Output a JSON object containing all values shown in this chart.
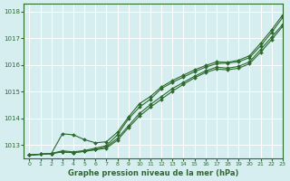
{
  "bg_color": "#d6eef0",
  "grid_color": "#ffffff",
  "line_color": "#2d6a2d",
  "marker_color": "#2d6a2d",
  "xlabel": "Graphe pression niveau de la mer (hPa)",
  "xlim": [
    -0.5,
    23
  ],
  "ylim": [
    1012.5,
    1018.3
  ],
  "yticks": [
    1013,
    1014,
    1015,
    1016,
    1017,
    1018
  ],
  "xticks": [
    0,
    1,
    2,
    3,
    4,
    5,
    6,
    7,
    8,
    9,
    10,
    11,
    12,
    13,
    14,
    15,
    16,
    17,
    18,
    19,
    20,
    21,
    22,
    23
  ],
  "series": [
    [
      1012.62,
      1012.65,
      1012.68,
      1012.78,
      1012.74,
      1012.79,
      1012.88,
      1012.98,
      1013.38,
      1013.98,
      1014.42,
      1014.72,
      1015.12,
      1015.35,
      1015.55,
      1015.75,
      1015.92,
      1016.05,
      1016.08,
      1016.12,
      1016.28,
      1016.72,
      1017.22,
      1017.78
    ],
    [
      1012.62,
      1012.65,
      1012.68,
      1012.74,
      1012.71,
      1012.76,
      1012.83,
      1012.93,
      1013.25,
      1013.72,
      1014.18,
      1014.52,
      1014.82,
      1015.12,
      1015.35,
      1015.58,
      1015.78,
      1015.92,
      1015.88,
      1015.95,
      1016.12,
      1016.58,
      1017.05,
      1017.52
    ],
    [
      1012.62,
      1012.65,
      1012.68,
      1013.42,
      1013.38,
      1013.2,
      1013.08,
      1013.12,
      1013.48,
      1014.05,
      1014.55,
      1014.82,
      1015.18,
      1015.42,
      1015.62,
      1015.82,
      1015.98,
      1016.12,
      1016.1,
      1016.18,
      1016.35,
      1016.82,
      1017.32,
      1017.88
    ],
    [
      1012.62,
      1012.65,
      1012.68,
      1012.74,
      1012.71,
      1012.76,
      1012.82,
      1012.88,
      1013.18,
      1013.65,
      1014.08,
      1014.42,
      1014.72,
      1015.02,
      1015.28,
      1015.52,
      1015.72,
      1015.85,
      1015.82,
      1015.88,
      1016.05,
      1016.48,
      1016.95,
      1017.45
    ]
  ]
}
